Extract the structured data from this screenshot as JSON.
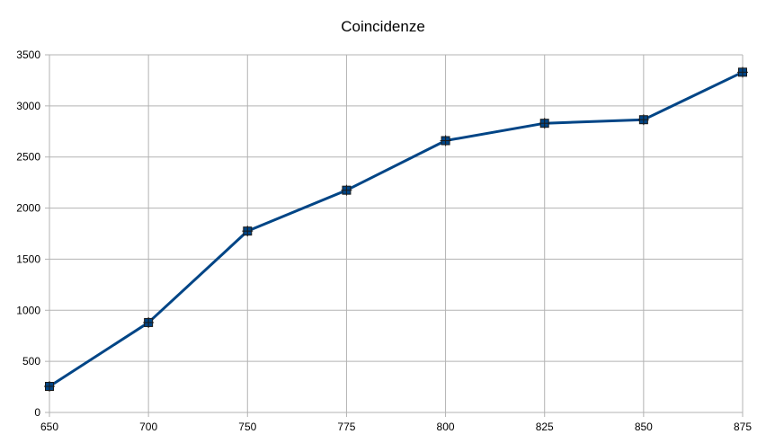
{
  "chart_data": {
    "type": "line",
    "title": "Coincidenze",
    "xlabel": "",
    "ylabel": "",
    "categories": [
      "650",
      "700",
      "750",
      "775",
      "800",
      "825",
      "850",
      "875"
    ],
    "series": [
      {
        "values": [
          255,
          880,
          1775,
          2175,
          2660,
          2830,
          2865,
          3330
        ],
        "color": "#004586",
        "marker": "square"
      }
    ],
    "ylim": [
      0,
      3500
    ],
    "yticks": [
      "0",
      "500",
      "1000",
      "1500",
      "2000",
      "2500",
      "3000",
      "3500"
    ],
    "grid": true,
    "legend": "none",
    "colors": {
      "series": "#004586",
      "grid": "#b3b3b3",
      "axis": "#b3b3b3"
    }
  }
}
